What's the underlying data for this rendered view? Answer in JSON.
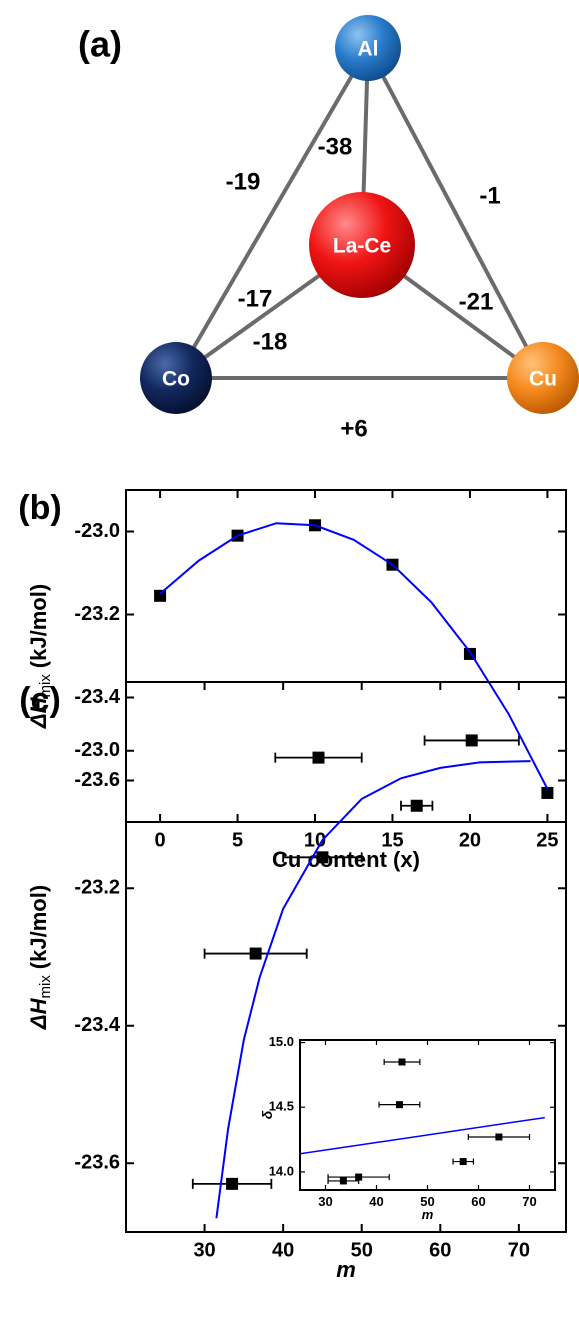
{
  "diagram": {
    "label": "(a)",
    "nodes": [
      {
        "label": "Al"
      },
      {
        "label": "La-Ce"
      },
      {
        "label": "Co"
      },
      {
        "label": "Cu"
      }
    ],
    "edges": [
      {
        "label": "-38"
      },
      {
        "label": "-19"
      },
      {
        "label": "-1"
      },
      {
        "label": "-17"
      },
      {
        "label": "-21"
      },
      {
        "label": "-18"
      },
      {
        "label": "+6"
      }
    ]
  },
  "chart_data": [
    {
      "type": "scatter",
      "panel_label": "(b)",
      "x_label": "Cu content (x)",
      "y_label": {
        "main": "ΔH",
        "subscript": "mix",
        "unit": "(kJ/mol)"
      },
      "xlim": [
        -2.2,
        26.2
      ],
      "xticks": [
        0,
        5,
        10,
        15,
        20,
        25
      ],
      "ylim": [
        -23.7,
        -22.9
      ],
      "yticks": [
        {
          "value": -23,
          "label": "-23.0"
        },
        -23.2,
        -23.4,
        -23.6
      ],
      "series": [
        {
          "type": "scatter",
          "color": "#000000",
          "x": [
            0,
            5,
            10,
            15,
            20,
            25
          ],
          "values": [
            -23.155,
            -23.01,
            -22.985,
            -23.08,
            -23.295,
            -23.63
          ]
        },
        {
          "type": "line",
          "color": "#0000ff",
          "x": [
            0,
            2.5,
            5,
            7.5,
            10,
            12.5,
            15,
            17.5,
            20,
            22.5,
            25
          ],
          "values": [
            -23.15,
            -23.07,
            -23.01,
            -22.98,
            -22.985,
            -23.02,
            -23.08,
            -23.17,
            -23.29,
            -23.44,
            -23.62
          ]
        }
      ]
    },
    {
      "type": "scatter",
      "panel_label": "(c)",
      "x_label": "m",
      "y_label": {
        "main": "ΔH",
        "subscript": "mix",
        "unit": "(kJ/mol)"
      },
      "xlim": [
        20,
        76
      ],
      "xticks": [
        30,
        40,
        50,
        60,
        70
      ],
      "ylim": [
        -23.7,
        -22.9
      ],
      "yticks": [
        {
          "value": -23,
          "label": "-23.0"
        },
        -23.2,
        -23.4,
        -23.6
      ],
      "series": [
        {
          "type": "scatter",
          "color": "#000000",
          "x": [
            33.5,
            36.5,
            45,
            44.5,
            57,
            64
          ],
          "x_errors": [
            5,
            6.5,
            5,
            5.5,
            2,
            6
          ],
          "values": [
            -23.63,
            -23.295,
            -23.155,
            -23.01,
            -23.08,
            -22.985
          ]
        },
        {
          "type": "line",
          "color": "#0000ff",
          "x": [
            31.5,
            33,
            35,
            37,
            40,
            45,
            50,
            55,
            60,
            65,
            71.5
          ],
          "values": [
            -23.68,
            -23.55,
            -23.42,
            -23.33,
            -23.23,
            -23.13,
            -23.07,
            -23.04,
            -23.025,
            -23.017,
            -23.015
          ]
        }
      ]
    },
    {
      "type": "scatter",
      "x_label": "m",
      "y_label": {
        "main": "δ"
      },
      "xlim": [
        25,
        75
      ],
      "xticks": [
        30,
        40,
        50,
        60,
        70
      ],
      "ylim": [
        13.86,
        15.02
      ],
      "yticks": [
        {
          "value": 14,
          "label": "14.0"
        },
        14.5,
        {
          "value": 15,
          "label": "15.0"
        }
      ],
      "series": [
        {
          "type": "scatter",
          "color": "#000000",
          "x": [
            33.5,
            36.5,
            45,
            44.5,
            57,
            64
          ],
          "x_errors": [
            3,
            6,
            3.5,
            4,
            2,
            6
          ],
          "values": [
            13.93,
            13.96,
            14.85,
            14.52,
            14.08,
            14.27
          ]
        },
        {
          "type": "line",
          "color": "#0000ff",
          "x": [
            25,
            73
          ],
          "values": [
            14.14,
            14.42
          ]
        }
      ]
    }
  ]
}
